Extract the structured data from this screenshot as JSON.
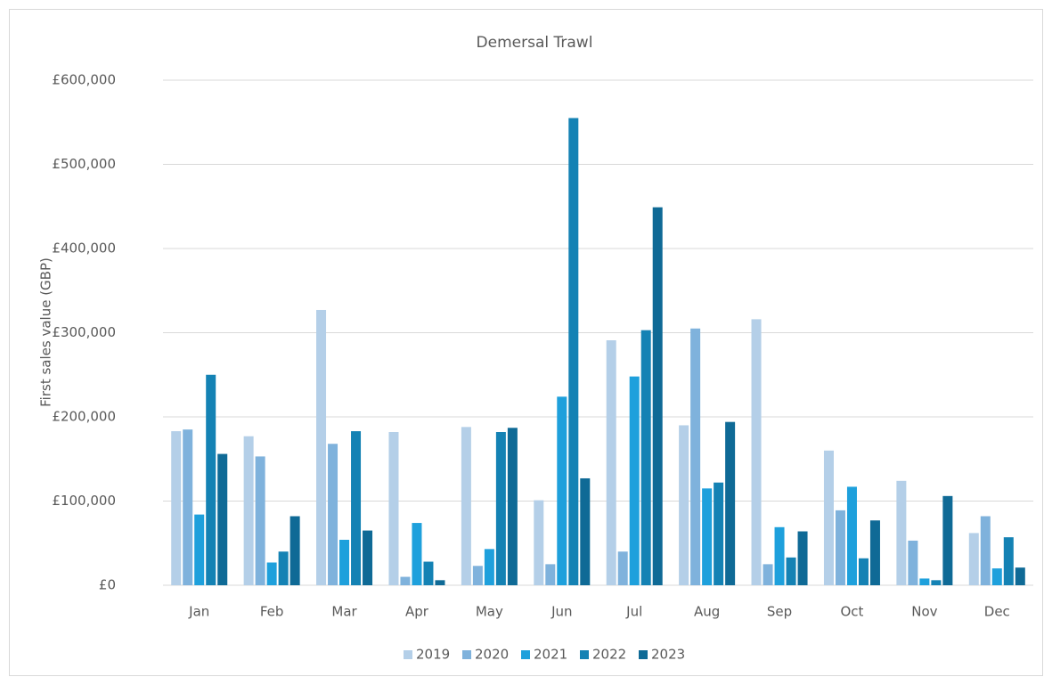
{
  "chart_data": {
    "type": "bar",
    "title": "Demersal Trawl",
    "y_label": "First sales value (GBP)",
    "categories": [
      "Jan",
      "Feb",
      "Mar",
      "Apr",
      "May",
      "Jun",
      "Jul",
      "Aug",
      "Sep",
      "Oct",
      "Nov",
      "Dec"
    ],
    "series": [
      {
        "name": "2019",
        "color": "#b4cfe8",
        "values": [
          183000,
          177000,
          327000,
          182000,
          188000,
          101000,
          291000,
          190000,
          316000,
          160000,
          124000,
          62000
        ]
      },
      {
        "name": "2020",
        "color": "#7fb2dc",
        "values": [
          185000,
          153000,
          168000,
          10000,
          23000,
          25000,
          40000,
          305000,
          25000,
          89000,
          53000,
          82000
        ]
      },
      {
        "name": "2021",
        "color": "#1ea0dc",
        "values": [
          84000,
          27000,
          54000,
          74000,
          43000,
          224000,
          248000,
          115000,
          69000,
          117000,
          8000,
          20000
        ]
      },
      {
        "name": "2022",
        "color": "#1482b4",
        "values": [
          250000,
          40000,
          183000,
          28000,
          182000,
          555000,
          303000,
          122000,
          33000,
          32000,
          6000,
          57000
        ]
      },
      {
        "name": "2023",
        "color": "#0f6a96",
        "values": [
          156000,
          82000,
          65000,
          6000,
          187000,
          127000,
          449000,
          194000,
          64000,
          77000,
          106000,
          21000
        ]
      }
    ],
    "ylim": [
      0,
      600000
    ],
    "yticks": [
      {
        "value": 0,
        "label": "£0"
      },
      {
        "value": 100000,
        "label": "£100,000"
      },
      {
        "value": 200000,
        "label": "£200,000"
      },
      {
        "value": 300000,
        "label": "£300,000"
      },
      {
        "value": 400000,
        "label": "£400,000"
      },
      {
        "value": 500000,
        "label": "£500,000"
      },
      {
        "value": 600000,
        "label": "£600,000"
      }
    ],
    "grid": true,
    "legend": "bottom"
  }
}
